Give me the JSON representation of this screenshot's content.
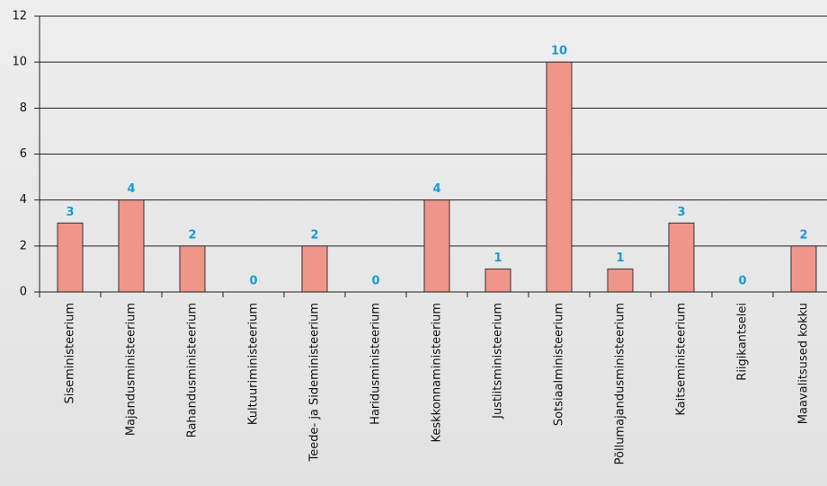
{
  "chart_data": {
    "type": "bar",
    "categories": [
      "Siseministeerium",
      "Majandusministeerium",
      "Rahandusministeerium",
      "Kultuuriministeerium",
      "Teede- ja Sideministeerium",
      "Haridusministeerium",
      "Keskkonnaministeerium",
      "Justiitsministeerium",
      "Sotsiaalministeerium",
      "Põllumajandusministeerium",
      "Kaitseministeerium",
      "Riigikantselei",
      "Maavalitsused kokku"
    ],
    "values": [
      3,
      4,
      2,
      0,
      2,
      0,
      4,
      1,
      10,
      1,
      3,
      0,
      2
    ],
    "color": "#f0958a",
    "label_color": "#1a9ad6",
    "ylim": [
      0,
      12
    ],
    "yticks": [
      0,
      2,
      4,
      6,
      8,
      10,
      12
    ],
    "grid": true
  }
}
